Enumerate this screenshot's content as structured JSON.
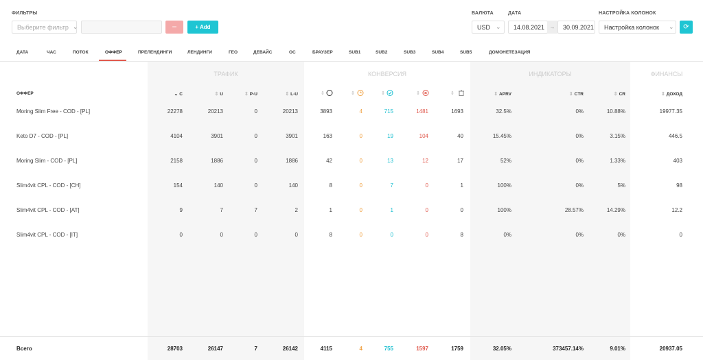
{
  "filters": {
    "label": "ФИЛЬТРЫ",
    "select_placeholder": "Выберите фильтр",
    "minus": "−",
    "add": "+ Add"
  },
  "currency": {
    "label": "ВАЛЮТА",
    "value": "USD"
  },
  "date": {
    "label": "ДАТА",
    "from": "14.08.2021",
    "to": "30.09.2021",
    "arrow": "→"
  },
  "columns_setting": {
    "label": "НАСТРОЙКА КОЛОНОК",
    "value": "Настройка колонок"
  },
  "tabs": [
    "ДАТА",
    "ЧАС",
    "ПОТОК",
    "ОФФЕР",
    "ПРЕЛЕНДИНГИ",
    "ЛЕНДИНГИ",
    "ГЕО",
    "ДЕВАЙС",
    "ОС",
    "БРАУЗЕР",
    "SUB1",
    "SUB2",
    "SUB3",
    "SUB4",
    "SUB5",
    "ДОМОНЕТЕЗАЦИЯ"
  ],
  "active_tab": 3,
  "table": {
    "groups": [
      "ТРАФИК",
      "КОНВЕРСИЯ",
      "ИНДИКАТОРЫ",
      "ФИНАНСЫ"
    ],
    "header": {
      "offer": "ОФФЕР",
      "c": "C",
      "u": "U",
      "pu": "P-U",
      "lu": "L-U",
      "aprv": "APRV",
      "ctr": "CTR",
      "cr": "CR",
      "income": "ДОХОД"
    },
    "rows": [
      [
        "Moring Slim Free - COD - [PL]",
        "22278",
        "20213",
        "0",
        "20213",
        "3893",
        "4",
        "715",
        "1481",
        "1693",
        "32.5%",
        "0%",
        "10.88%",
        "19977.35"
      ],
      [
        "Keto D7 - COD - [PL]",
        "4104",
        "3901",
        "0",
        "3901",
        "163",
        "0",
        "19",
        "104",
        "40",
        "15.45%",
        "0%",
        "3.15%",
        "446.5"
      ],
      [
        "Moring Slim - COD - [PL]",
        "2158",
        "1886",
        "0",
        "1886",
        "42",
        "0",
        "13",
        "12",
        "17",
        "52%",
        "0%",
        "1.33%",
        "403"
      ],
      [
        "Slim4vit CPL - COD - [CH]",
        "154",
        "140",
        "0",
        "140",
        "8",
        "0",
        "7",
        "0",
        "1",
        "100%",
        "0%",
        "5%",
        "98"
      ],
      [
        "Slim4vit CPL - COD - [AT]",
        "9",
        "7",
        "7",
        "2",
        "1",
        "0",
        "1",
        "0",
        "0",
        "100%",
        "28.57%",
        "14.29%",
        "12.2"
      ],
      [
        "Slim4vit CPL - COD - [IT]",
        "0",
        "0",
        "0",
        "0",
        "8",
        "0",
        "0",
        "0",
        "8",
        "0%",
        "0%",
        "0%",
        "0"
      ]
    ],
    "total": [
      "Всего",
      "28703",
      "26147",
      "7",
      "26142",
      "4115",
      "4",
      "755",
      "1597",
      "1759",
      "32.05%",
      "373457.14%",
      "9.01%",
      "20937.05"
    ]
  }
}
